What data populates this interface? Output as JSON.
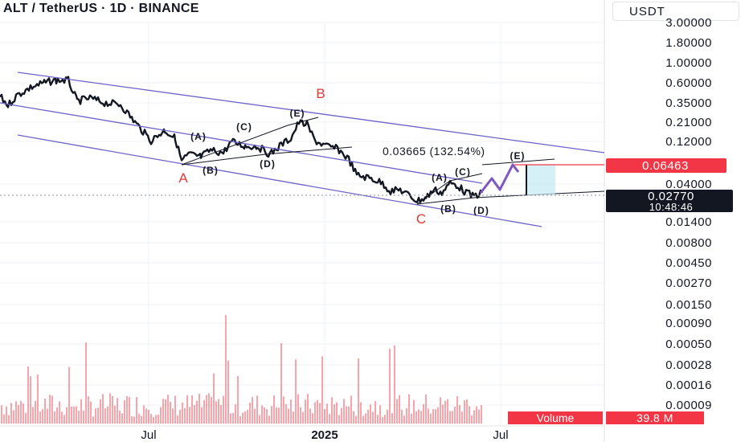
{
  "header": {
    "title": "ALT / TetherUS · 1D · BINANCE",
    "currency": "USDT"
  },
  "colors": {
    "price": "#131722",
    "channel": "#6b63c8",
    "wave_label": "#e53935",
    "target_line": "#f23645",
    "projection": "#7e57c2",
    "box_fill": "#c4e9f5",
    "volume": "#f23645",
    "grid": "#eef0f3"
  },
  "chart_data": {
    "type": "line",
    "scale": "log",
    "y_ticks": [
      "3.00000",
      "1.80000",
      "1.00000",
      "0.60000",
      "0.35000",
      "0.21000",
      "0.12000",
      "0.04000",
      "0.01400",
      "0.00800",
      "0.00450",
      "0.00270",
      "0.00150",
      "0.00090",
      "0.00050",
      "0.00028",
      "0.00016",
      "0.00009"
    ],
    "x_ticks": [
      "Jul",
      "2025",
      "Jul"
    ],
    "price_label": "0.02770",
    "countdown": "10:48:46",
    "target_price": "0.06463",
    "measure_label": "0.03665 (132.54%)",
    "volume_label": "Volume",
    "volume_value": "39.8 M",
    "wave_labels": [
      "A",
      "B",
      "C"
    ],
    "subwave_labels": [
      "(A)",
      "(B)",
      "(C)",
      "(D)",
      "(E)"
    ],
    "subwaves_2": [
      "(A)",
      "(B)",
      "(C)",
      "(D)",
      "(E)"
    ]
  }
}
